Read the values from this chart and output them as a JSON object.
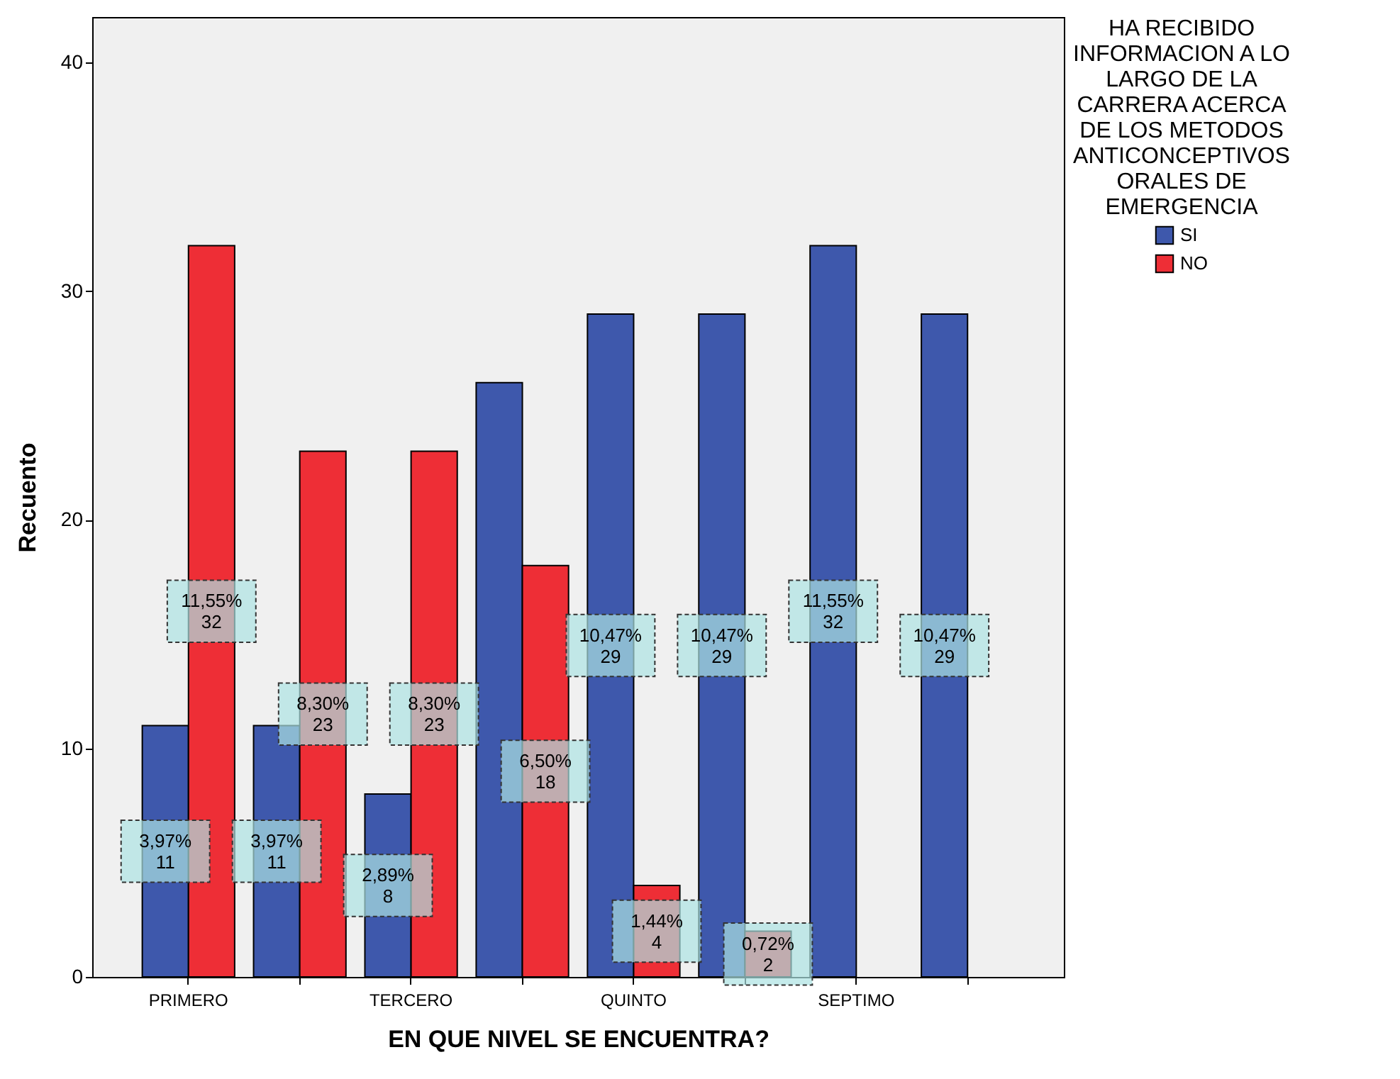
{
  "chart_data": {
    "type": "bar",
    "xlabel": "EN QUE NIVEL SE ENCUENTRA?",
    "ylabel": "Recuento",
    "legend_title": "HA RECIBIDO INFORMACION A LO LARGO DE LA CARRERA ACERCA DE LOS METODOS ANTICONCEPTIVOS ORALES DE EMERGENCIA",
    "categories": [
      "PRIMERO",
      null,
      "TERCERO",
      null,
      "QUINTO",
      null,
      "SEPTIMO",
      null
    ],
    "series": [
      {
        "name": "SI",
        "color": "#3e58ac",
        "values": [
          11,
          11,
          8,
          26,
          29,
          29,
          32,
          29
        ],
        "value_labels": [
          "3,97%\n11",
          "3,97%\n11",
          "2,89%\n8",
          null,
          "10,47%\n29",
          "10,47%\n29",
          "11,55%\n32",
          "10,47%\n29"
        ]
      },
      {
        "name": "NO",
        "color": "#ee2e36",
        "values": [
          32,
          23,
          23,
          18,
          4,
          2,
          null,
          null
        ],
        "value_labels": [
          "11,55%\n32",
          "8,30%\n23",
          "8,30%\n23",
          "6,50%\n18",
          "1,44%\n4",
          "0,72%\n2",
          null,
          null
        ]
      }
    ],
    "ylim": [
      0,
      42
    ],
    "yticks": [
      0,
      10,
      20,
      30,
      40
    ],
    "grid": false,
    "legend": "top right"
  }
}
